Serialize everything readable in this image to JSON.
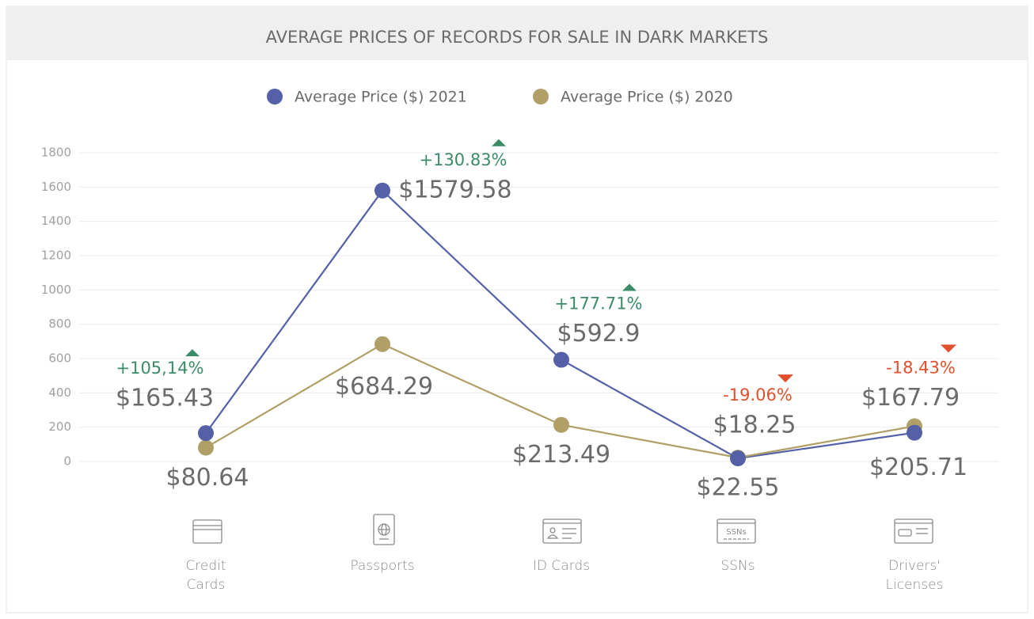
{
  "chart_data": {
    "type": "line",
    "title": "AVERAGE PRICES OF RECORDS FOR SALE IN DARK MARKETS",
    "categories": [
      "Credit Cards",
      "Passports",
      "ID Cards",
      "SSNs",
      "Drivers' Licenses"
    ],
    "series": [
      {
        "name": "Average Price ($) 2021",
        "color": "#5461a6",
        "values": [
          165.43,
          1579.58,
          592.9,
          18.25,
          167.79
        ],
        "value_labels": [
          "$165.43",
          "$1579.58",
          "$592.9",
          "$18.25",
          "$167.79"
        ]
      },
      {
        "name": "Average Price ($) 2020",
        "color": "#b09f66",
        "values": [
          80.64,
          684.29,
          213.49,
          22.55,
          205.71
        ],
        "value_labels": [
          "$80.64",
          "$684.29",
          "$213.49",
          "$22.55",
          "$205.71"
        ]
      }
    ],
    "change_labels": [
      {
        "text": "+105,14%",
        "direction": "up"
      },
      {
        "text": "+130.83%",
        "direction": "up"
      },
      {
        "text": "+177.71%",
        "direction": "up"
      },
      {
        "text": "-19.06%",
        "direction": "down"
      },
      {
        "text": "-18.43%",
        "direction": "down"
      }
    ],
    "up_color": "#3b8a68",
    "down_color": "#e1502c",
    "icon_text": "SSNs",
    "ylim": [
      0,
      1800
    ],
    "yticks": [
      0,
      200,
      400,
      600,
      800,
      1000,
      1200,
      1400,
      1600,
      1800
    ],
    "grid": true,
    "legend": "top"
  }
}
